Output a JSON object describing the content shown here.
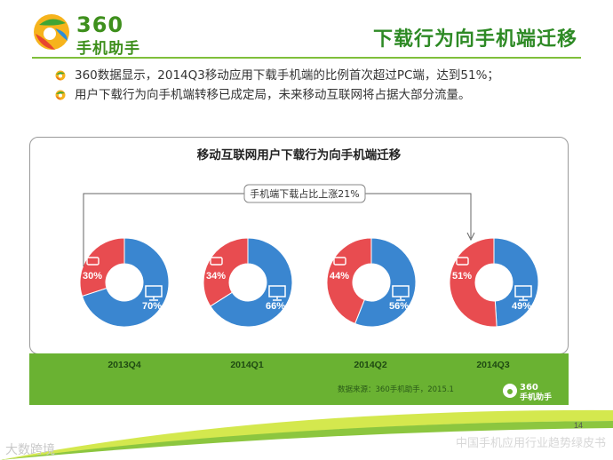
{
  "logo": {
    "number": "360",
    "text": "手机助手"
  },
  "title": "下载行为向手机端迁移",
  "bullets": [
    "360数据显示，2014Q3移动应用下载手机端的比例首次超过PC端，达到51%；",
    "用户下载行为向手机端转移已成定局，未来移动互联网将占据大部分流量。"
  ],
  "chart_data": {
    "type": "pie",
    "title": "移动互联网用户下载行为向手机端迁移",
    "annotation": "手机端下载占比上涨21%",
    "categories": [
      "2013Q4",
      "2014Q1",
      "2014Q2",
      "2014Q3"
    ],
    "series": [
      {
        "name": "",
        "values": [
          30,
          34,
          44,
          51
        ],
        "labels": [
          "30%",
          "34%",
          "44%",
          "51%"
        ],
        "color": "#e84c50",
        "icon": "phone-icon"
      },
      {
        "name": "",
        "values": [
          70,
          66,
          56,
          49
        ],
        "labels": [
          "70%",
          "66%",
          "56%",
          "49%"
        ],
        "color": "#3a86d0",
        "icon": "monitor-icon"
      }
    ]
  },
  "band": {
    "source": "数据来源：360手机助手，2015.1",
    "logo_number": "360",
    "logo_text": "手机助手"
  },
  "page_number": "14",
  "footer": {
    "left": "大数跨境",
    "right": "中国手机应用行业趋势绿皮书"
  }
}
